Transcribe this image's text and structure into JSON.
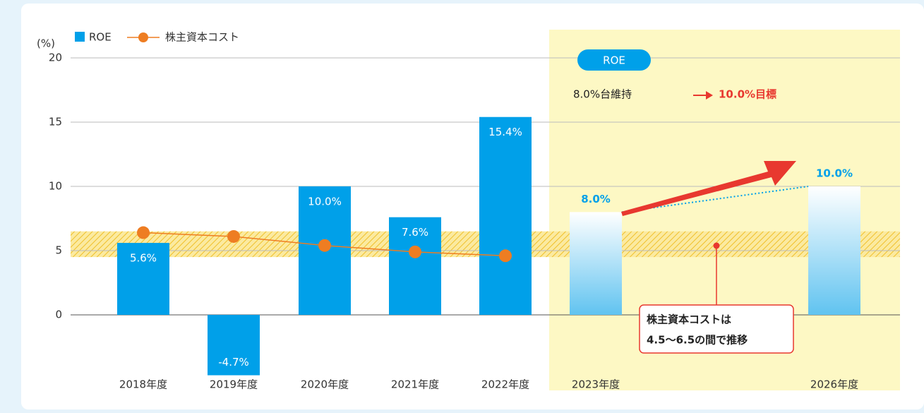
{
  "chart_data": {
    "type": "bar",
    "y_unit": "(%)",
    "categories": [
      "2018年度",
      "2019年度",
      "2020年度",
      "2021年度",
      "2022年度",
      "2023年度",
      "2026年度"
    ],
    "series": [
      {
        "name": "ROE",
        "type": "bar",
        "color": "#00a0e9",
        "values": [
          5.6,
          -4.7,
          10.0,
          7.6,
          15.4,
          8.0,
          10.0
        ],
        "value_labels": [
          "5.6%",
          "-4.7%",
          "10.0%",
          "7.6%",
          "15.4%",
          "8.0%",
          "10.0%"
        ],
        "projected": [
          false,
          false,
          false,
          false,
          false,
          true,
          true
        ]
      },
      {
        "name": "株主資本コスト",
        "type": "line",
        "color": "#ee7d22",
        "values": [
          6.4,
          6.1,
          5.4,
          4.9,
          4.6,
          null,
          null
        ]
      }
    ],
    "band": [
      4.5,
      6.5
    ],
    "ylim": [
      0,
      20
    ],
    "yticks": [
      0,
      5,
      10,
      15,
      20
    ],
    "grid": true,
    "annotations": {
      "badge": "ROE",
      "current": "8.0%台維持",
      "target": "10.0%目標",
      "band_note": [
        "株主資本コストは",
        "4.5〜6.5の間で推移"
      ]
    }
  }
}
